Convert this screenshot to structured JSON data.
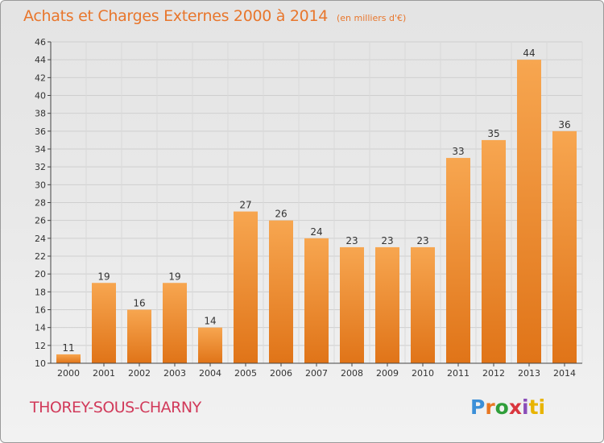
{
  "header": {
    "title": "Achats et Charges Externes 2000 à 2014",
    "unit": "(en milliers d'€)"
  },
  "footer": {
    "commune": "THOREY-SOUS-CHARNY",
    "logo": {
      "text": "Proxiti",
      "letters": [
        "P",
        "r",
        "o",
        "x",
        "i",
        "ti"
      ]
    }
  },
  "colors": {
    "title": "#e8762c",
    "commune": "#d13a5a",
    "bar_top": "#f7a650",
    "bar_bottom": "#e07418",
    "axis": "#444444"
  },
  "chart_data": {
    "type": "bar",
    "title": "Achats et Charges Externes 2000 à 2014",
    "subtitle": "(en milliers d'€)",
    "categories": [
      "2000",
      "2001",
      "2002",
      "2003",
      "2004",
      "2005",
      "2006",
      "2007",
      "2008",
      "2009",
      "2010",
      "2011",
      "2012",
      "2013",
      "2014"
    ],
    "values": [
      11,
      19,
      16,
      19,
      14,
      27,
      26,
      24,
      23,
      23,
      23,
      33,
      35,
      44,
      36
    ],
    "ylim": [
      10,
      46
    ],
    "yticks": [
      10,
      12,
      14,
      16,
      18,
      20,
      22,
      24,
      26,
      28,
      30,
      32,
      34,
      36,
      38,
      40,
      42,
      44,
      46
    ],
    "grid": true,
    "xlabel": "",
    "ylabel": ""
  }
}
